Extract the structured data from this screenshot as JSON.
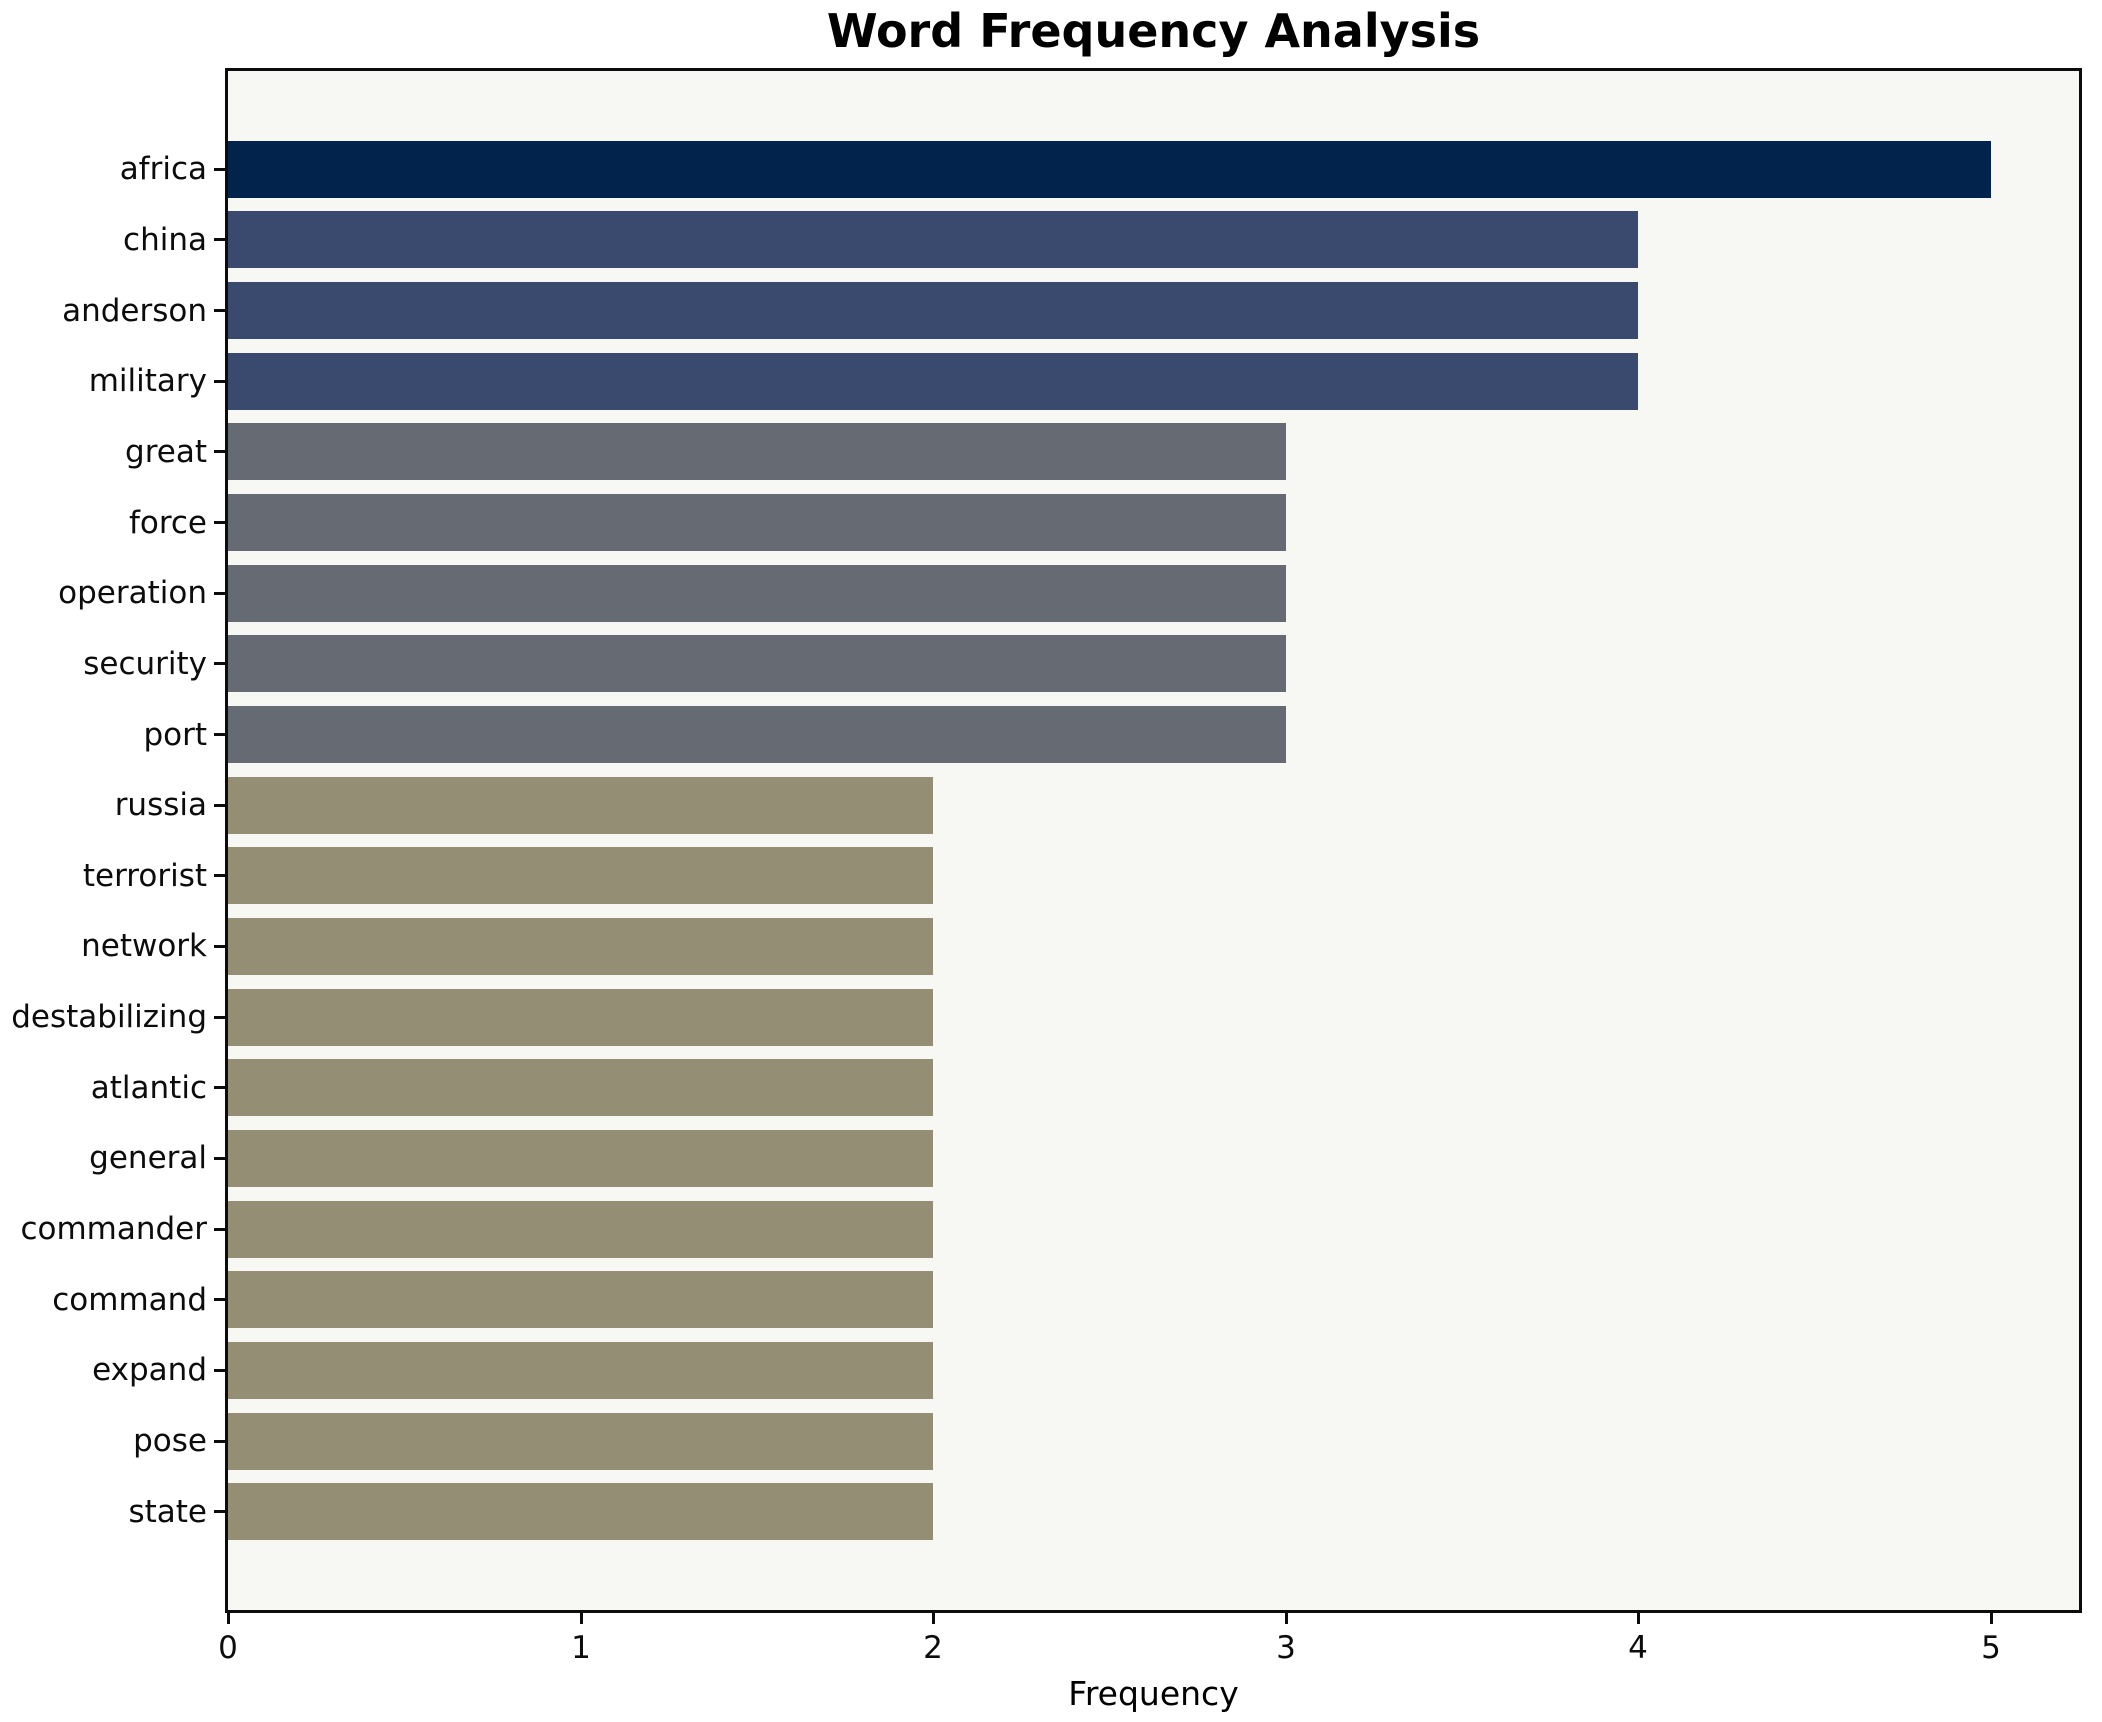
{
  "chart_data": {
    "type": "bar",
    "orientation": "horizontal",
    "title": "Word Frequency Analysis",
    "xlabel": "Frequency",
    "ylabel": "",
    "categories": [
      "africa",
      "china",
      "anderson",
      "military",
      "great",
      "force",
      "operation",
      "security",
      "port",
      "russia",
      "terrorist",
      "network",
      "destabilizing",
      "atlantic",
      "general",
      "commander",
      "command",
      "expand",
      "pose",
      "state"
    ],
    "values": [
      5,
      4,
      4,
      4,
      3,
      3,
      3,
      3,
      3,
      2,
      2,
      2,
      2,
      2,
      2,
      2,
      2,
      2,
      2,
      2
    ],
    "x_ticks": [
      "0",
      "1",
      "2",
      "3",
      "4",
      "5"
    ],
    "xlim": [
      0,
      5.25
    ],
    "grid": "off",
    "legend": "none",
    "colors_by_value": {
      "5": "#02234C",
      "4": "#3A496E",
      "3": "#666A73",
      "2": "#948E74"
    },
    "plot_background": "#F7F7F4",
    "figure_background": "#FFFFFF",
    "spine_color": "#0C0C0C",
    "text_color": "#000000"
  }
}
